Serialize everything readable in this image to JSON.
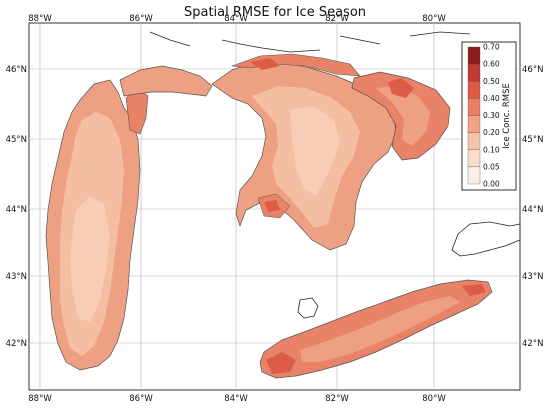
{
  "title": "Spatial RMSE for Ice Season",
  "axes": {
    "lon_range": [
      -88.2,
      -78.8
    ],
    "lat_range": [
      41.3,
      46.6
    ],
    "top_ticks": [
      "88°W",
      "86°W",
      "84°W",
      "82°W",
      "80°W"
    ],
    "bottom_ticks": [
      "88°W",
      "86°W",
      "84°W",
      "82°W",
      "80°W"
    ],
    "left_ticks": [
      "46°N",
      "45°N",
      "44°N",
      "43°N",
      "42°N"
    ],
    "right_ticks": [
      "46°N",
      "45°N",
      "44°N",
      "43°N",
      "42°N"
    ],
    "grid": true
  },
  "colorbar": {
    "title": "Ice Conc. RMSE",
    "placement": "top-right",
    "levels": [
      "0.00",
      "0.05",
      "0.10",
      "0.20",
      "0.30",
      "0.40",
      "0.50",
      "0.60",
      "0.70"
    ],
    "colors": [
      "#fbeee6",
      "#f9dccb",
      "#f5c3aa",
      "#f1a384",
      "#ea7f62",
      "#de5a48",
      "#c13b33",
      "#8e1d20"
    ]
  },
  "colors": {
    "low": "#f7cdb6",
    "medium": "#eea083",
    "high": "#e88368",
    "very_high": "#dc5c47",
    "coast": "#222222",
    "outline": "#7b7b7b"
  }
}
